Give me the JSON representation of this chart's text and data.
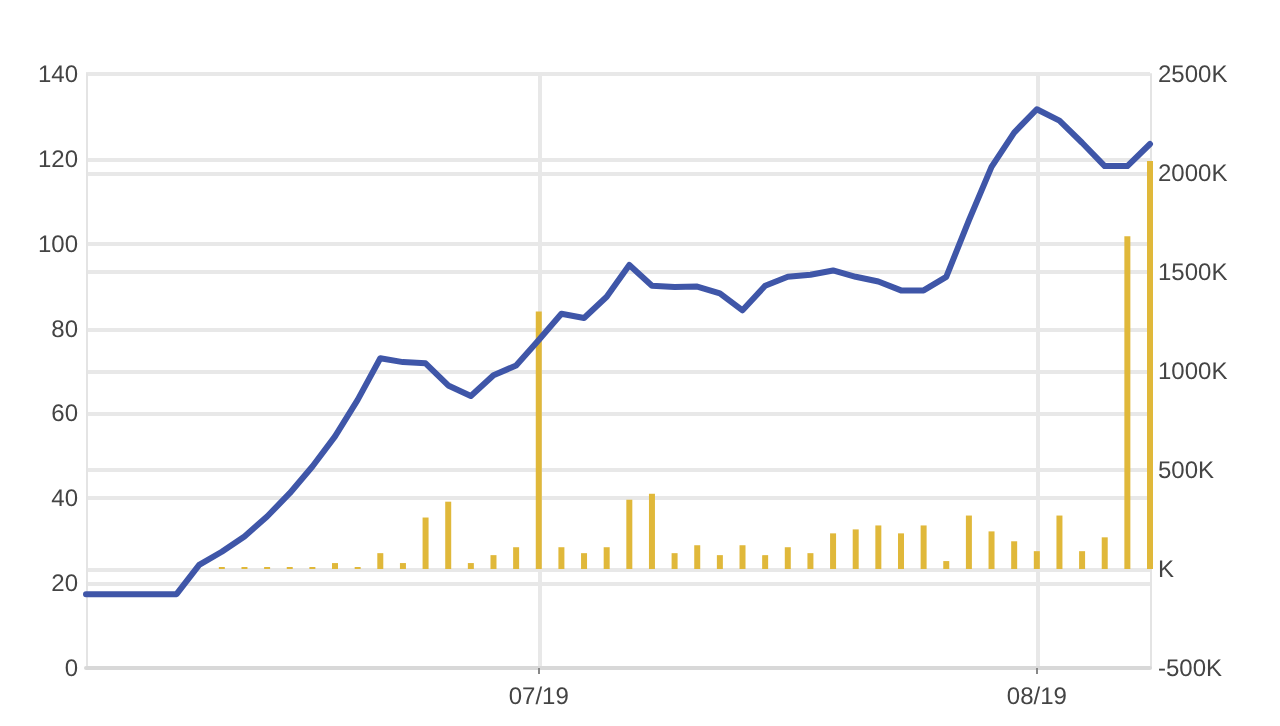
{
  "chart_data": {
    "type": "line",
    "categories": [
      null,
      null,
      null,
      null,
      null,
      null,
      null,
      null,
      null,
      null,
      null,
      null,
      null,
      null,
      null,
      null,
      null,
      null,
      null,
      null,
      "07/19",
      null,
      null,
      null,
      null,
      null,
      null,
      null,
      null,
      null,
      null,
      null,
      null,
      null,
      null,
      null,
      null,
      null,
      null,
      null,
      null,
      null,
      "08/19",
      null,
      null,
      null,
      null,
      null
    ],
    "series": [
      {
        "type": "bar",
        "axis": "y2",
        "color": "#e0b83a",
        "values": [
          null,
          null,
          null,
          null,
          null,
          null,
          10,
          10,
          10,
          10,
          10,
          30,
          10,
          80,
          30,
          260,
          340,
          30,
          70,
          110,
          1300,
          110,
          80,
          110,
          350,
          380,
          80,
          120,
          70,
          120,
          70,
          110,
          80,
          180,
          200,
          220,
          180,
          220,
          40,
          270,
          190,
          140,
          90,
          270,
          90,
          160,
          1680,
          2060
        ]
      },
      {
        "color": "#3f56a8",
        "values": [
          17.4,
          17.4,
          17.4,
          17.4,
          17.4,
          24.3,
          27.4,
          31.0,
          35.7,
          41.2,
          47.5,
          54.6,
          63.2,
          73.0,
          72.1,
          71.8,
          66.6,
          64.1,
          69.0,
          71.3,
          77.3,
          83.5,
          82.5,
          87.5,
          95.0,
          90.1,
          89.8,
          89.9,
          88.3,
          84.3,
          90.1,
          92.2,
          92.7,
          93.7,
          92.2,
          91.1,
          89.0,
          89.0,
          92.2,
          105.5,
          118.1,
          126.2,
          131.7,
          129.0,
          123.8,
          118.3,
          118.3,
          123.5
        ]
      }
    ],
    "ylim": [
      0,
      140
    ],
    "yticks": [
      0,
      20,
      40,
      60,
      80,
      100,
      120,
      140
    ],
    "y2lim": [
      -500,
      2500
    ],
    "y2ticks": [
      {
        "value": -500,
        "label": "-500K"
      },
      {
        "value": 0,
        "label": "K"
      },
      {
        "value": 500,
        "label": "500K"
      },
      {
        "value": 1000,
        "label": "1000K"
      },
      {
        "value": 1500,
        "label": "1500K"
      },
      {
        "value": 2000,
        "label": "2000K"
      },
      {
        "value": 2500,
        "label": "2500K"
      }
    ],
    "grid": true,
    "marker": "none",
    "line_style": "solid"
  }
}
